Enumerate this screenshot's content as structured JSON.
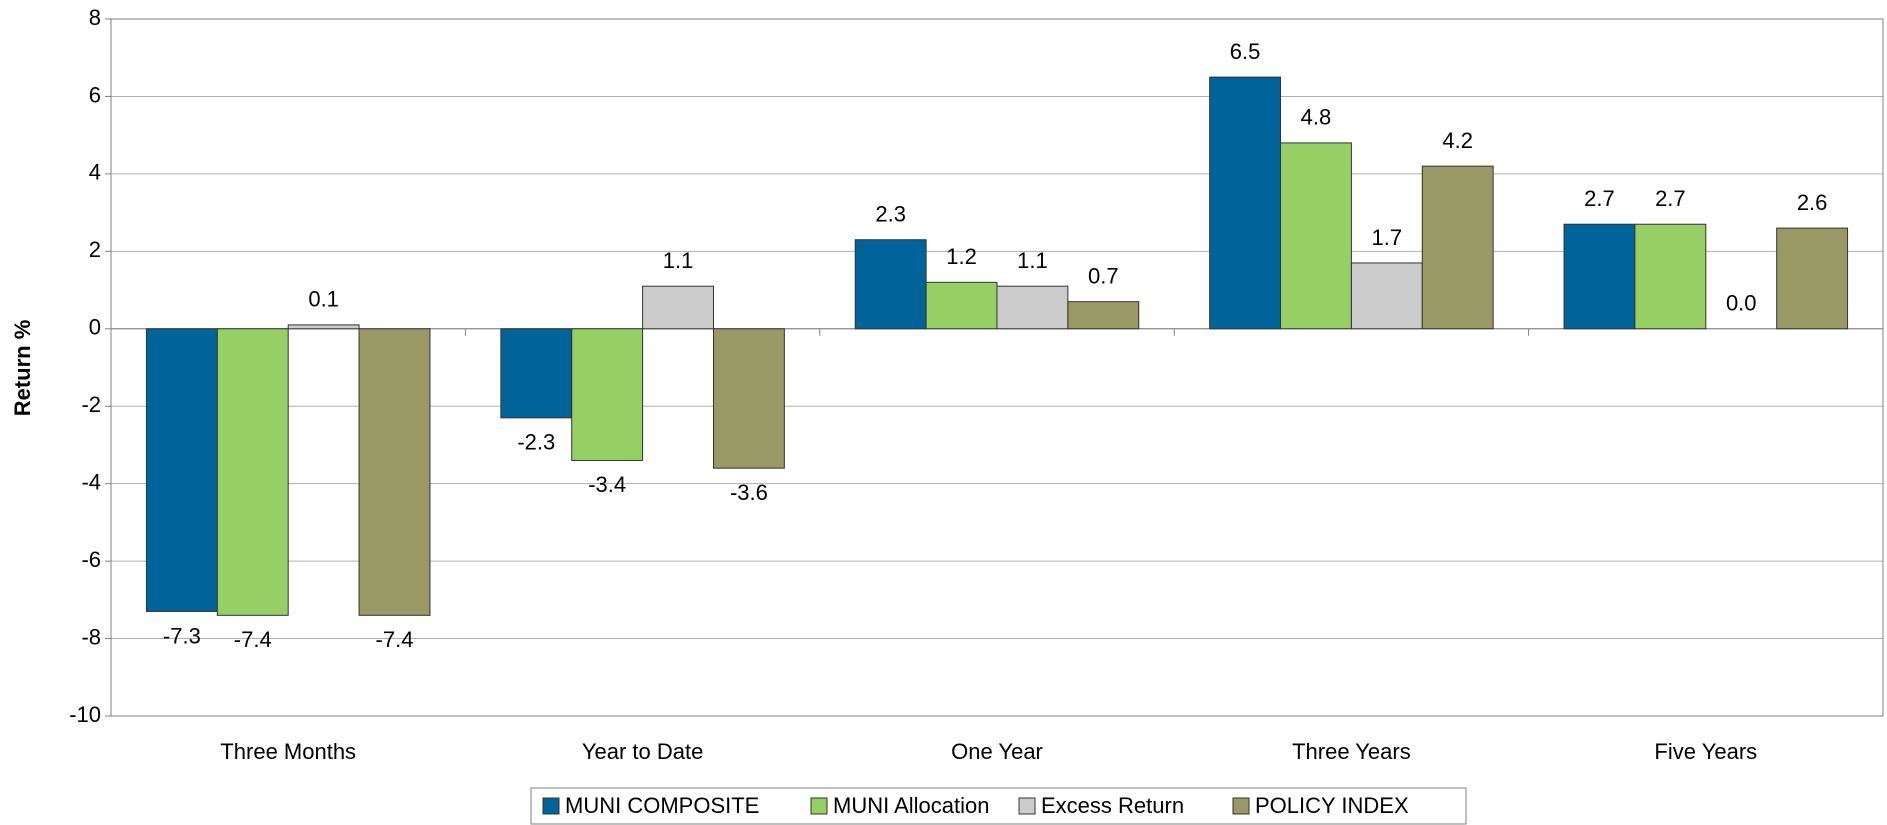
{
  "chart_data": {
    "type": "bar",
    "y_label": "Return %",
    "categories": [
      "Three Months",
      "Year to Date",
      "One Year",
      "Three Years",
      "Five Years"
    ],
    "series": [
      {
        "name": "MUNI COMPOSITE",
        "color": "#00649a",
        "values": [
          -7.3,
          -2.3,
          2.3,
          6.5,
          2.7
        ]
      },
      {
        "name": "MUNI Allocation",
        "color": "#96cf64",
        "values": [
          -7.4,
          -3.4,
          1.2,
          4.8,
          2.7
        ]
      },
      {
        "name": "Excess Return",
        "color": "#cccccc",
        "values": [
          0.1,
          1.1,
          1.1,
          1.7,
          0
        ],
        "value_labels": [
          "0.1",
          "1.1",
          "1.1",
          "1.7",
          "0.0"
        ]
      },
      {
        "name": "POLICY INDEX",
        "color": "#999966",
        "values": [
          -7.4,
          -3.6,
          0.7,
          4.2,
          2.6
        ]
      }
    ],
    "ylim": [
      -10,
      8
    ],
    "yticks": [
      -10,
      -8,
      -6,
      -4,
      -2,
      0,
      2,
      4,
      6,
      8
    ],
    "grid": true,
    "legend": "bottom"
  }
}
